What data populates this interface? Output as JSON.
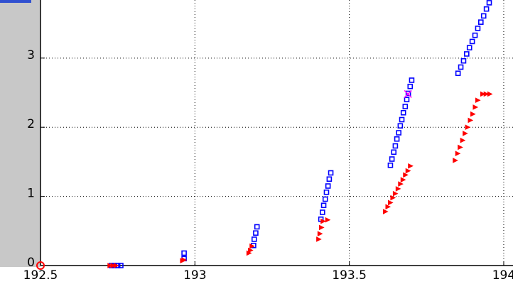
{
  "chart_data": {
    "type": "scatter",
    "xlim": [
      192.5,
      194.03
    ],
    "ylim": [
      0,
      3.84
    ],
    "xticks": [
      192.5,
      193,
      193.5,
      194
    ],
    "yticks": [
      0,
      1,
      2,
      3
    ],
    "grid": true,
    "series": [
      {
        "color": "#0000ff",
        "marker": "square",
        "x": [
          192.73,
          192.74,
          192.75,
          192.76,
          192.965,
          192.965,
          193.19,
          193.192,
          193.197,
          193.201,
          193.408,
          193.413,
          193.417,
          193.422,
          193.426,
          193.431,
          193.435,
          193.44,
          193.633,
          193.638,
          193.644,
          193.649,
          193.654,
          193.66,
          193.665,
          193.67,
          193.675,
          193.681,
          193.686,
          193.691,
          193.697,
          193.702,
          193.852,
          193.861,
          193.87,
          193.88,
          193.889,
          193.898,
          193.907,
          193.916,
          193.926,
          193.935,
          193.944,
          193.953
        ],
        "values": [
          0,
          0,
          0,
          0,
          0.1,
          0.18,
          0.29,
          0.38,
          0.47,
          0.56,
          0.67,
          0.77,
          0.87,
          0.96,
          1.06,
          1.15,
          1.25,
          1.34,
          1.45,
          1.54,
          1.64,
          1.73,
          1.83,
          1.92,
          2.02,
          2.11,
          2.21,
          2.3,
          2.4,
          2.49,
          2.59,
          2.68,
          2.78,
          2.87,
          2.96,
          3.06,
          3.15,
          3.24,
          3.33,
          3.43,
          3.52,
          3.61,
          3.71,
          3.8
        ]
      },
      {
        "color": "#ff0000",
        "marker": "triangle",
        "x": [
          192.725,
          192.735,
          192.745,
          192.96,
          192.965,
          193.175,
          193.18,
          193.185,
          193.401,
          193.405,
          193.41,
          193.415,
          193.43,
          193.617,
          193.625,
          193.633,
          193.641,
          193.649,
          193.658,
          193.666,
          193.674,
          193.682,
          193.69,
          193.698,
          193.843,
          193.851,
          193.859,
          193.867,
          193.875,
          193.883,
          193.892,
          193.9,
          193.908,
          193.916,
          193.932,
          193.943,
          193.955
        ],
        "values": [
          0,
          0,
          0,
          0.07,
          0.08,
          0.18,
          0.22,
          0.28,
          0.38,
          0.46,
          0.55,
          0.64,
          0.66,
          0.78,
          0.85,
          0.91,
          0.98,
          1.04,
          1.11,
          1.18,
          1.24,
          1.31,
          1.37,
          1.44,
          1.52,
          1.62,
          1.71,
          1.81,
          1.91,
          2.0,
          2.1,
          2.19,
          2.29,
          2.39,
          2.48,
          2.48,
          2.48
        ]
      },
      {
        "color": "#ff0000",
        "marker": "circle",
        "x": [
          192.5
        ],
        "values": [
          0
        ]
      },
      {
        "color": "#ff00ff",
        "marker": "cross",
        "x": [
          193.69
        ],
        "values": [
          2.48
        ]
      }
    ]
  }
}
